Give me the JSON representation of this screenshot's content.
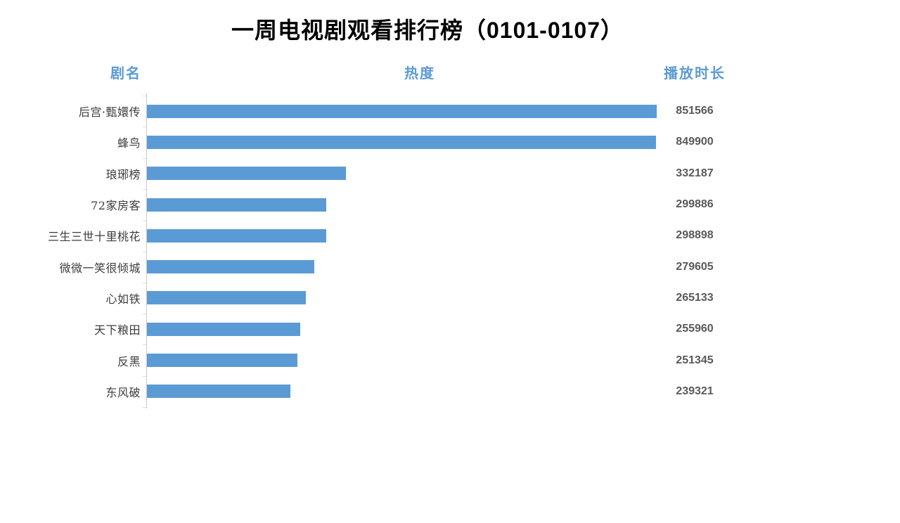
{
  "colors": {
    "bar": "#5B9BD5",
    "header_text": "#5B9BD5",
    "value_text": "#595959",
    "label_text": "#3B3B3B",
    "axis_line": "#C9C9C9",
    "title_text": "#000000",
    "background": "#FFFFFF"
  },
  "chart_data": {
    "type": "bar",
    "orientation": "horizontal",
    "title": "一周电视剧观看排行榜（0101-0107）",
    "columns": {
      "category": "剧名",
      "value_axis": "热度",
      "value_label": "播放时长"
    },
    "categories": [
      "后宫·甄嬛传",
      "蜂鸟",
      "琅琊榜",
      "72家房客",
      "三生三世十里桃花",
      "微微一笑很倾城",
      "心如铁",
      "天下粮田",
      "反黑",
      "东风破"
    ],
    "values": [
      851566,
      849900,
      332187,
      299886,
      298898,
      279605,
      265133,
      255960,
      251345,
      239321
    ],
    "xlim": [
      0,
      851566
    ],
    "grid": false,
    "legend": null,
    "value_labels_shown": true,
    "sorted": "descending"
  }
}
